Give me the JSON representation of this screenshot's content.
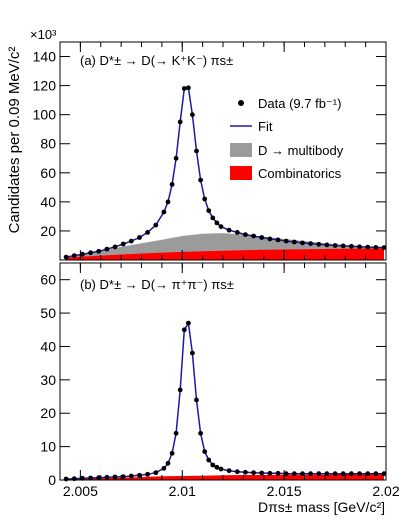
{
  "figure": {
    "ylabel": "Candidates per 0.09 MeV/c²",
    "xlabel": "Dπs± mass [GeV/c²]",
    "top_multiplier": "×10³",
    "xticks": [
      "2.005",
      "2.01",
      "2.015",
      "2.02"
    ]
  },
  "legend": {
    "data": "Data (9.7 fb⁻¹)",
    "fit": "Fit",
    "multibody": "D → multibody",
    "combinatorics": "Combinatorics"
  },
  "colors": {
    "fit": "#1a1aa8",
    "data": "#000000",
    "multibody": "#9b9b9b",
    "combinatorics": "#ff0000"
  },
  "chart_data": [
    {
      "type": "line",
      "panel": "top",
      "title": "(a) D*± → D(→ K⁺K⁻) πs±",
      "ylim": [
        0,
        150
      ],
      "xlim": [
        2.004,
        2.02
      ],
      "yticks": [
        20,
        40,
        60,
        80,
        100,
        120,
        140
      ],
      "y_unit_multiplier": "×10³",
      "series": [
        {
          "name": "Data (9.7 fb⁻¹)",
          "style": "points",
          "x": [
            2.0043,
            2.0047,
            2.0051,
            2.0055,
            2.0059,
            2.0063,
            2.0067,
            2.0071,
            2.0075,
            2.0079,
            2.0083,
            2.0087,
            2.0091,
            2.0093,
            2.0095,
            2.0097,
            2.0099,
            2.0101,
            2.0103,
            2.0105,
            2.0107,
            2.0109,
            2.0111,
            2.0113,
            2.0115,
            2.0117,
            2.0119,
            2.0123,
            2.0127,
            2.0131,
            2.0135,
            2.0139,
            2.0143,
            2.0147,
            2.0151,
            2.0155,
            2.0159,
            2.0163,
            2.0167,
            2.0171,
            2.0175,
            2.0179,
            2.0183,
            2.0187,
            2.0191,
            2.0195,
            2.0199
          ],
          "y": [
            2.0,
            3.0,
            4.0,
            5.0,
            6.0,
            7.5,
            9.0,
            11.0,
            13.0,
            15.5,
            19.0,
            24.0,
            33.0,
            40.0,
            52.0,
            70.0,
            95.0,
            118.0,
            118.5,
            100.0,
            75.0,
            55.0,
            42.0,
            34.0,
            29.0,
            25.5,
            23.0,
            20.5,
            19.0,
            17.5,
            16.5,
            15.5,
            14.5,
            13.8,
            13.0,
            12.4,
            11.8,
            11.3,
            10.8,
            10.4,
            10.0,
            9.7,
            9.4,
            9.1,
            8.9,
            8.7,
            8.5
          ]
        },
        {
          "name": "Fit",
          "style": "line",
          "x": [
            2.0043,
            2.0047,
            2.0051,
            2.0055,
            2.0059,
            2.0063,
            2.0067,
            2.0071,
            2.0075,
            2.0079,
            2.0083,
            2.0087,
            2.0091,
            2.0093,
            2.0095,
            2.0097,
            2.0099,
            2.0101,
            2.0103,
            2.0105,
            2.0107,
            2.0109,
            2.0111,
            2.0113,
            2.0115,
            2.0117,
            2.0119,
            2.0123,
            2.0127,
            2.0131,
            2.0135,
            2.0139,
            2.0143,
            2.0147,
            2.0151,
            2.0155,
            2.0159,
            2.0163,
            2.0167,
            2.0171,
            2.0175,
            2.0179,
            2.0183,
            2.0187,
            2.0191,
            2.0195,
            2.0199
          ],
          "y": [
            2.0,
            3.0,
            4.0,
            5.0,
            6.0,
            7.5,
            9.0,
            11.0,
            13.0,
            15.5,
            19.0,
            24.0,
            33.0,
            40.0,
            52.0,
            70.0,
            95.0,
            118.0,
            118.5,
            100.0,
            75.0,
            55.0,
            42.0,
            34.0,
            29.0,
            25.5,
            23.0,
            20.5,
            19.0,
            17.5,
            16.5,
            15.5,
            14.5,
            13.8,
            13.0,
            12.4,
            11.8,
            11.3,
            10.8,
            10.4,
            10.0,
            9.7,
            9.4,
            9.1,
            8.9,
            8.7,
            8.5
          ]
        },
        {
          "name": "D → multibody",
          "style": "area",
          "x": [
            2.0043,
            2.005,
            2.006,
            2.007,
            2.008,
            2.009,
            2.01,
            2.011,
            2.012,
            2.013,
            2.014,
            2.015,
            2.016,
            2.017,
            2.018,
            2.019,
            2.0199
          ],
          "y": [
            2.0,
            3.5,
            6.0,
            9.0,
            11.5,
            14.0,
            16.5,
            18.0,
            18.5,
            17.5,
            16.0,
            14.5,
            13.0,
            11.5,
            10.3,
            9.3,
            8.5
          ]
        },
        {
          "name": "Combinatorics",
          "style": "area",
          "x": [
            2.0043,
            2.005,
            2.006,
            2.007,
            2.008,
            2.009,
            2.01,
            2.011,
            2.012,
            2.013,
            2.014,
            2.015,
            2.016,
            2.017,
            2.018,
            2.019,
            2.0199
          ],
          "y": [
            1.5,
            2.2,
            3.0,
            3.8,
            4.5,
            5.1,
            5.6,
            6.0,
            6.4,
            6.7,
            7.0,
            7.2,
            7.4,
            7.6,
            7.8,
            7.9,
            8.0
          ]
        }
      ]
    },
    {
      "type": "line",
      "panel": "bottom",
      "title": "(b) D*± → D(→ π⁺π⁻) πs±",
      "ylim": [
        0,
        65
      ],
      "xlim": [
        2.004,
        2.02
      ],
      "xlabel": "Dπs± mass [GeV/c²]",
      "yticks": [
        0,
        10,
        20,
        30,
        40,
        50,
        60
      ],
      "xticks": [
        2.005,
        2.01,
        2.015,
        2.02
      ],
      "series": [
        {
          "name": "Data",
          "style": "points",
          "x": [
            2.0043,
            2.0047,
            2.0051,
            2.0055,
            2.0059,
            2.0063,
            2.0067,
            2.0071,
            2.0075,
            2.0079,
            2.0083,
            2.0087,
            2.0091,
            2.0093,
            2.0095,
            2.0097,
            2.0099,
            2.0101,
            2.0103,
            2.0105,
            2.0107,
            2.0109,
            2.0111,
            2.0113,
            2.0115,
            2.0117,
            2.0119,
            2.0123,
            2.0127,
            2.0131,
            2.0135,
            2.0139,
            2.0143,
            2.0147,
            2.0151,
            2.0155,
            2.0159,
            2.0163,
            2.0167,
            2.0171,
            2.0175,
            2.0179,
            2.0183,
            2.0187,
            2.0191,
            2.0195,
            2.0199
          ],
          "y": [
            0.3,
            0.4,
            0.5,
            0.6,
            0.7,
            0.8,
            0.9,
            1.0,
            1.2,
            1.4,
            1.7,
            2.2,
            3.5,
            5.0,
            8.0,
            14.0,
            27.0,
            45.0,
            47.0,
            38.0,
            24.0,
            14.0,
            8.5,
            6.0,
            4.5,
            3.8,
            3.3,
            2.8,
            2.5,
            2.3,
            2.2,
            2.1,
            2.0,
            2.0,
            1.9,
            1.9,
            1.9,
            1.9,
            1.9,
            1.9,
            1.9,
            1.9,
            1.9,
            1.9,
            1.9,
            1.9,
            1.9
          ]
        },
        {
          "name": "Fit",
          "style": "line",
          "x": [
            2.0043,
            2.0047,
            2.0051,
            2.0055,
            2.0059,
            2.0063,
            2.0067,
            2.0071,
            2.0075,
            2.0079,
            2.0083,
            2.0087,
            2.0091,
            2.0093,
            2.0095,
            2.0097,
            2.0099,
            2.0101,
            2.0103,
            2.0105,
            2.0107,
            2.0109,
            2.0111,
            2.0113,
            2.0115,
            2.0117,
            2.0119,
            2.0123,
            2.0127,
            2.0131,
            2.0135,
            2.0139,
            2.0143,
            2.0147,
            2.0151,
            2.0155,
            2.0159,
            2.0163,
            2.0167,
            2.0171,
            2.0175,
            2.0179,
            2.0183,
            2.0187,
            2.0191,
            2.0195,
            2.0199
          ],
          "y": [
            0.3,
            0.4,
            0.5,
            0.6,
            0.7,
            0.8,
            0.9,
            1.0,
            1.2,
            1.4,
            1.7,
            2.2,
            3.5,
            5.0,
            8.0,
            14.0,
            27.0,
            45.0,
            47.0,
            38.0,
            24.0,
            14.0,
            8.5,
            6.0,
            4.5,
            3.8,
            3.3,
            2.8,
            2.5,
            2.3,
            2.2,
            2.1,
            2.0,
            2.0,
            1.9,
            1.9,
            1.9,
            1.9,
            1.9,
            1.9,
            1.9,
            1.9,
            1.9,
            1.9,
            1.9,
            1.9,
            1.9
          ]
        },
        {
          "name": "Combinatorics",
          "style": "area",
          "x": [
            2.0043,
            2.005,
            2.006,
            2.007,
            2.008,
            2.009,
            2.01,
            2.011,
            2.012,
            2.013,
            2.014,
            2.015,
            2.016,
            2.017,
            2.018,
            2.019,
            2.0199
          ],
          "y": [
            0.2,
            0.3,
            0.5,
            0.7,
            0.9,
            1.1,
            1.2,
            1.3,
            1.4,
            1.5,
            1.5,
            1.6,
            1.6,
            1.6,
            1.7,
            1.7,
            1.7
          ]
        }
      ]
    }
  ]
}
